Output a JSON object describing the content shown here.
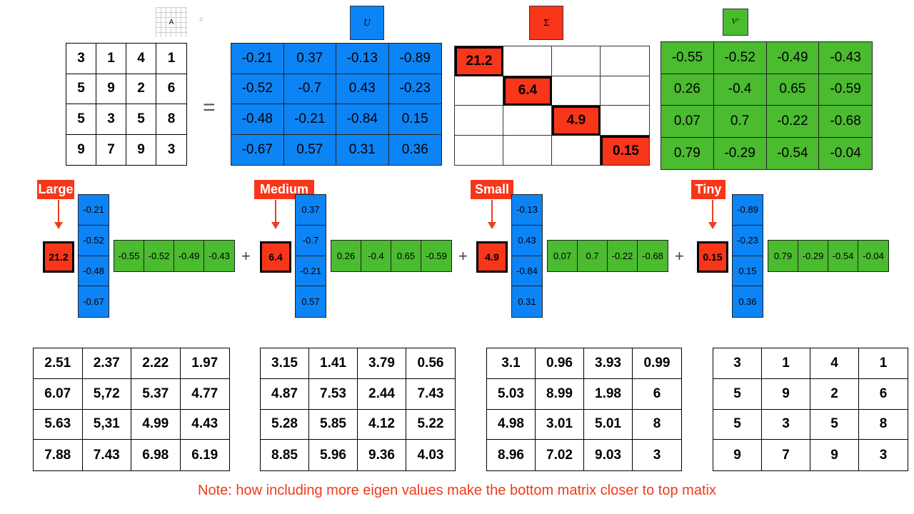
{
  "header": {
    "a_label": "A",
    "equals_small": "=",
    "u_label": "U",
    "sigma_label": "Σ",
    "v_label": "Vᵀ"
  },
  "equals": "=",
  "matrix_a": [
    "3",
    "1",
    "4",
    "1",
    "5",
    "9",
    "2",
    "6",
    "5",
    "3",
    "5",
    "8",
    "9",
    "7",
    "9",
    "3"
  ],
  "matrix_u": [
    "-0.21",
    "0.37",
    "-0.13",
    "-0.89",
    "-0.52",
    "-0.7",
    "0.43",
    "-0.23",
    "-0.48",
    "-0.21",
    "-0.84",
    "0.15",
    "-0.67",
    "0.57",
    "0.31",
    "0.36"
  ],
  "matrix_sigma": [
    "21.2",
    "",
    "",
    "",
    "",
    "6.4",
    "",
    "",
    "",
    "",
    "4.9",
    "",
    "",
    "",
    "",
    "0.15"
  ],
  "matrix_v": [
    "-0.55",
    "-0.52",
    "-0.49",
    "-0.43",
    "0.26",
    "-0.4",
    "0.65",
    "-0.59",
    "0.07",
    "0.7",
    "-0.22",
    "-0.68",
    "0.79",
    "-0.29",
    "-0.54",
    "-0.04"
  ],
  "terms": [
    {
      "tag": "Large",
      "sigma": "21.2",
      "u": [
        "-0.21",
        "-0.52",
        "-0.48",
        "-0.67"
      ],
      "v": [
        "-0.55",
        "-0.52",
        "-0.49",
        "-0.43"
      ]
    },
    {
      "tag": "Medium",
      "sigma": "6.4",
      "u": [
        "0.37",
        "-0.7",
        "-0.21",
        "0.57"
      ],
      "v": [
        "0.26",
        "-0.4",
        "0.65",
        "-0.59"
      ]
    },
    {
      "tag": "Small",
      "sigma": "4.9",
      "u": [
        "-0.13",
        "0.43",
        "-0.84",
        "0.31"
      ],
      "v": [
        "0.07",
        "0.7",
        "-0.22",
        "-0.68"
      ]
    },
    {
      "tag": "Tiny",
      "sigma": "0.15",
      "u": [
        "-0.89",
        "-0.23",
        "0.15",
        "0.36"
      ],
      "v": [
        "0.79",
        "-0.29",
        "-0.54",
        "-0.04"
      ]
    }
  ],
  "plus": "+",
  "bottom_matrices": [
    [
      "2.51",
      "2.37",
      "2.22",
      "1.97",
      "6.07",
      "5,72",
      "5.37",
      "4.77",
      "5.63",
      "5,31",
      "4.99",
      "4.43",
      "7.88",
      "7.43",
      "6.98",
      "6.19"
    ],
    [
      "3.15",
      "1.41",
      "3.79",
      "0.56",
      "4.87",
      "7.53",
      "2.44",
      "7.43",
      "5.28",
      "5.85",
      "4.12",
      "5.22",
      "8.85",
      "5.96",
      "9.36",
      "4.03"
    ],
    [
      "3.1",
      "0.96",
      "3.93",
      "0.99",
      "5.03",
      "8.99",
      "1.98",
      "6",
      "4.98",
      "3.01",
      "5.01",
      "8",
      "8.96",
      "7.02",
      "9.03",
      "3"
    ],
    [
      "3",
      "1",
      "4",
      "1",
      "5",
      "9",
      "2",
      "6",
      "5",
      "3",
      "5",
      "8",
      "9",
      "7",
      "9",
      "3"
    ]
  ],
  "note": "Note: how including more eigen values make the bottom matrix closer to top matix",
  "colors": {
    "u_blue": "#0d84f5",
    "sigma_red": "#f8361a",
    "v_green": "#4bbb30",
    "note_red": "#f03a1c"
  }
}
